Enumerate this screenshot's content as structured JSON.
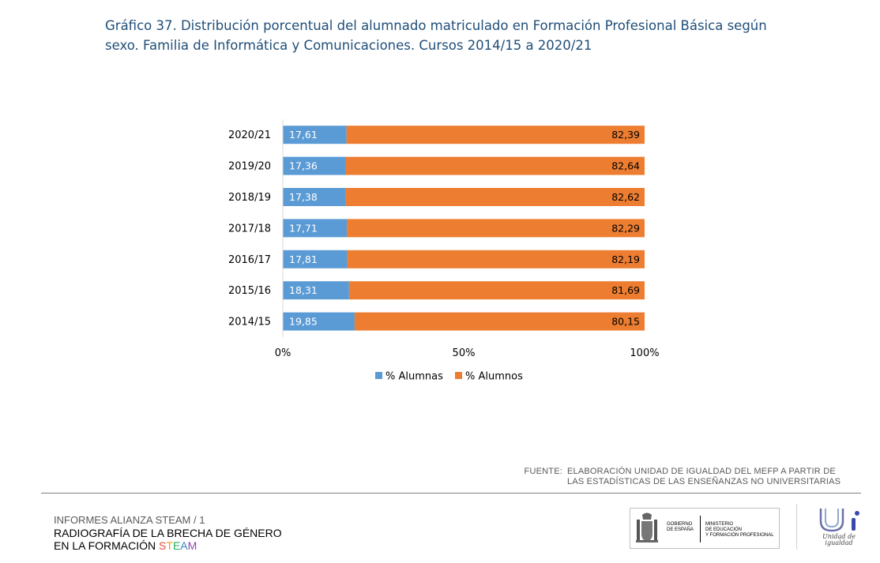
{
  "title_lines": [
    "Gráfico 37. Distribución porcentual del alumnado matriculado en Formación Profesional Básica según",
    "sexo. Familia de Informática y Comunicaciones. Cursos 2014/15 a 2020/21"
  ],
  "chart_data": {
    "type": "bar",
    "orientation": "horizontal",
    "stacked": true,
    "percent_stacked": true,
    "categories": [
      "2020/21",
      "2019/20",
      "2018/19",
      "2017/18",
      "2016/17",
      "2015/16",
      "2014/15"
    ],
    "series": [
      {
        "name": "% Alumnas",
        "color": "#5b9bd5",
        "values": [
          17.61,
          17.36,
          17.38,
          17.71,
          17.81,
          18.31,
          19.85
        ],
        "labels": [
          "17,61",
          "17,36",
          "17,38",
          "17,71",
          "17,81",
          "18,31",
          "19,85"
        ]
      },
      {
        "name": "% Alumnos",
        "color": "#ed7d31",
        "values": [
          82.39,
          82.64,
          82.62,
          82.29,
          82.19,
          81.69,
          80.15
        ],
        "labels": [
          "82,39",
          "82,64",
          "82,62",
          "82,29",
          "82,19",
          "81,69",
          "80,15"
        ]
      }
    ],
    "xlim": [
      0,
      100
    ],
    "x_ticks": [
      "0%",
      "50%",
      "100%"
    ],
    "grid": false,
    "legend_position": "bottom"
  },
  "source": {
    "prefix": "FUENTE:",
    "line1": "ELABORACIÓN UNIDAD DE IGUALDAD DEL MEFP A PARTIR DE",
    "line2": "LAS ESTADÍSTICAS DE LAS ENSEÑANZAS NO UNIVERSITARIAS"
  },
  "footer": {
    "series_line": "INFORMES ALIANZA STEAM / 1",
    "report_line1": "RADIOGRAFÍA DE LA BRECHA DE GÉNERO",
    "report_line2_prefix": "EN LA FORMACIÓN ",
    "steam": {
      "s": "S",
      "t": "T",
      "e": "E",
      "a": "A",
      "m": "M"
    }
  },
  "logos": {
    "gov_line1": "GOBIERNO",
    "gov_line2": "DE ESPAÑA",
    "ministry_line1": "MINISTERIO",
    "ministry_line2": "DE EDUCACIÓN",
    "ministry_line3": "Y FORMACIÓN PROFESIONAL",
    "unit_caption_line1": "Unidad de",
    "unit_caption_line2": "igualdad"
  }
}
